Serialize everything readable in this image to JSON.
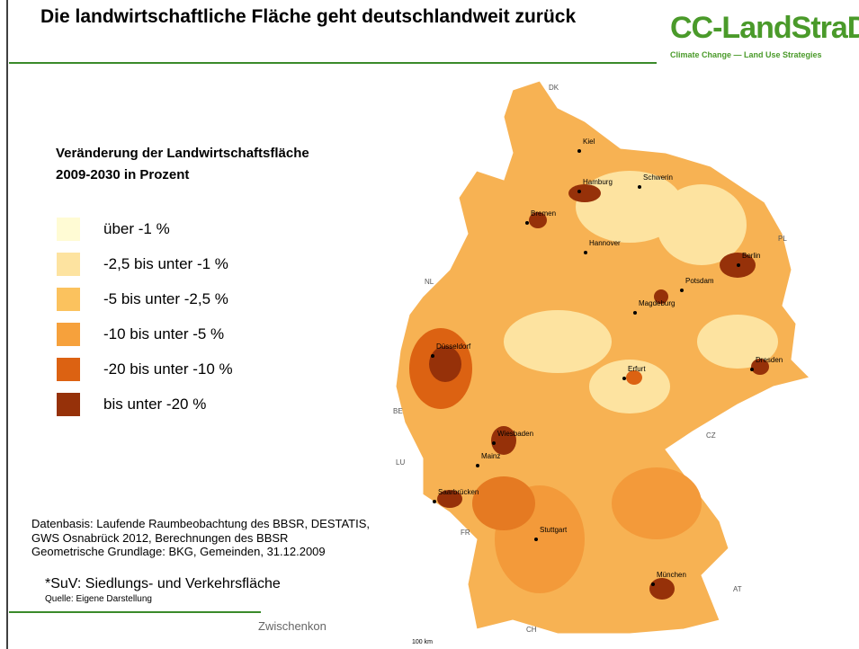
{
  "header": {
    "title": "Die landwirtschaftliche Fläche geht deutschlandweit zurück",
    "logo": "CC-LandStraD",
    "logo_subtitle": "Climate Change — Land Use Strategies"
  },
  "legend": {
    "title_lines": [
      "Veränderung der Landwirtschaftsfläche",
      "2009-2030 in Prozent"
    ],
    "items": [
      {
        "label": "über -1 %",
        "color": "#fffbd4"
      },
      {
        "label": "-2,5 bis unter -1 %",
        "color": "#fde3a0"
      },
      {
        "label": "-5 bis unter -2,5 %",
        "color": "#fbc25e"
      },
      {
        "label": "-10 bis unter -5 %",
        "color": "#f6a13c"
      },
      {
        "label": "-20 bis unter -10 %",
        "color": "#dc6212"
      },
      {
        "label": "bis unter -20 %",
        "color": "#963109"
      }
    ]
  },
  "sources": [
    "Datenbasis: Laufende Raumbeobachtung des BBSR, DESTATIS,",
    "GWS Osnabrück 2012, Berechnungen des BBSR",
    "Geometrische Grundlage: BKG, Gemeinden, 31.12.2009"
  ],
  "footnote": "*SuV: Siedlungs- und Verkehrsfläche",
  "source_note": "Quelle: Eigene Darstellung",
  "footer": "Zwischenkon",
  "map": {
    "labels": [
      "DK",
      "Kiel",
      "Hamburg",
      "Schwerin",
      "Bremen",
      "Hannover",
      "PL",
      "Berlin",
      "NL",
      "Potsdam",
      "Magdeburg",
      "Düsseldorf",
      "Erfurt",
      "Dresden",
      "BE",
      "Wiesbaden",
      "CZ",
      "Mainz",
      "LU",
      "Saarbrücken",
      "FR",
      "Stuttgart",
      "München",
      "AT",
      "CH"
    ],
    "scale": "100 km"
  }
}
